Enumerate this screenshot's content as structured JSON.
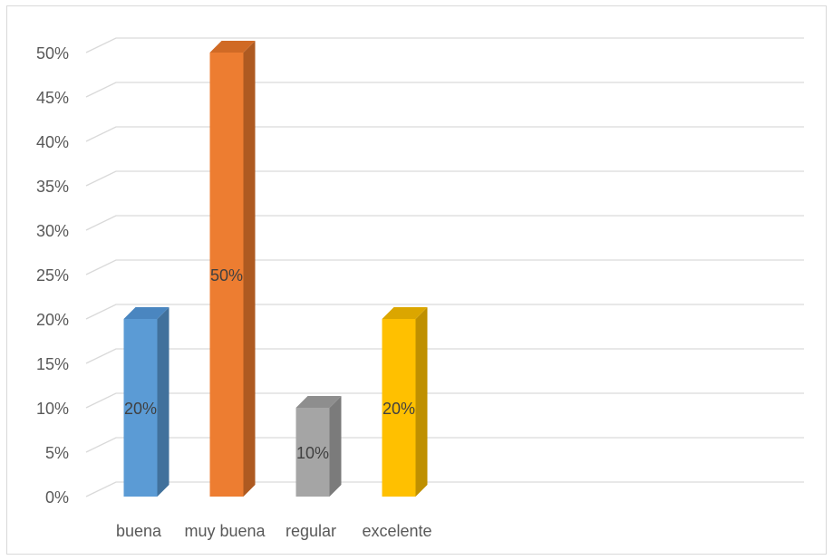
{
  "chart_data": {
    "type": "bar",
    "style": "3d-column",
    "categories": [
      "buena",
      "muy buena",
      "regular",
      "excelente"
    ],
    "values": [
      20,
      50,
      10,
      20
    ],
    "data_labels": [
      "20%",
      "50%",
      "10%",
      "20%"
    ],
    "ylim": [
      0,
      50
    ],
    "y_tick_step": 5,
    "y_tick_labels": [
      "0%",
      "5%",
      "10%",
      "15%",
      "20%",
      "25%",
      "30%",
      "35%",
      "40%",
      "45%",
      "50%"
    ],
    "grid": true,
    "legend": "none",
    "title": "",
    "xlabel": "",
    "ylabel": "",
    "colors": {
      "buena": {
        "front": "#5b9bd5",
        "side": "#41719c",
        "top": "#4a86c0"
      },
      "muy buena": {
        "front": "#ed7d31",
        "side": "#ae5a21",
        "top": "#d06a25"
      },
      "regular": {
        "front": "#a5a5a5",
        "side": "#7b7b7b",
        "top": "#8e8e8e"
      },
      "excelente": {
        "front": "#ffc000",
        "side": "#bf9000",
        "top": "#dba600"
      },
      "gridline": "#d9d9d9",
      "text": "#595959"
    }
  }
}
